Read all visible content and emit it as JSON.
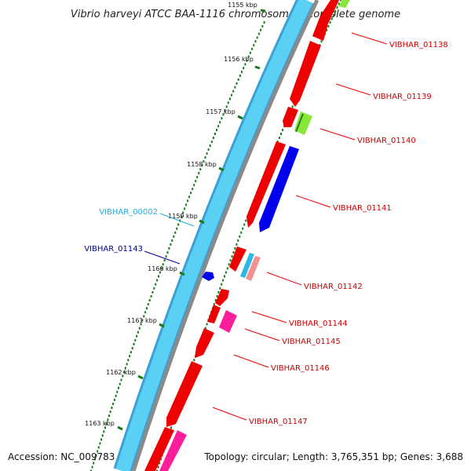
{
  "title": "Vibrio harveyi ATCC BAA-1116 chromosome I, complete genome",
  "footer": {
    "accession": "Accession: NC_009783",
    "summary": "Topology: circular; Length: 3,765,351 bp; Genes: 3,688"
  },
  "colors": {
    "backbone_outer": "#3aa0d8",
    "backbone_inner": "#5bd0f5",
    "backbone_gray": "#888888",
    "gc_dots": "#1a7a1a",
    "tick": "#1a7a1a",
    "red_gene": "#ee0000",
    "blue_gene": "#0000ee",
    "pink_gene": "#ff1e9a",
    "lightgreen_gene": "#88e83a",
    "cyan_gene": "#2ab8e8",
    "salmon_gene": "#f49090",
    "red_label": "#cc0000",
    "cyan_label": "#22aadd",
    "blue_label": "#000099"
  },
  "map": {
    "kbp_labels": [
      "1155 kbp",
      "1156 kbp",
      "1157 kbp",
      "1158 kbp",
      "1159 kbp",
      "1160 kbp",
      "1161 kbp",
      "1162 kbp",
      "1163 kbp"
    ],
    "gene_labels": [
      {
        "text": "VIBHAR_01138",
        "color": "red"
      },
      {
        "text": "VIBHAR_01139",
        "color": "red"
      },
      {
        "text": "VIBHAR_01140",
        "color": "red"
      },
      {
        "text": "VIBHAR_01141",
        "color": "red"
      },
      {
        "text": "VIBHAR_00002",
        "color": "cyan"
      },
      {
        "text": "VIBHAR_01143",
        "color": "blue"
      },
      {
        "text": "VIBHAR_01142",
        "color": "red"
      },
      {
        "text": "VIBHAR_01144",
        "color": "red"
      },
      {
        "text": "VIBHAR_01145",
        "color": "red"
      },
      {
        "text": "VIBHAR_01146",
        "color": "red"
      },
      {
        "text": "VIBHAR_01147",
        "color": "red"
      }
    ]
  }
}
